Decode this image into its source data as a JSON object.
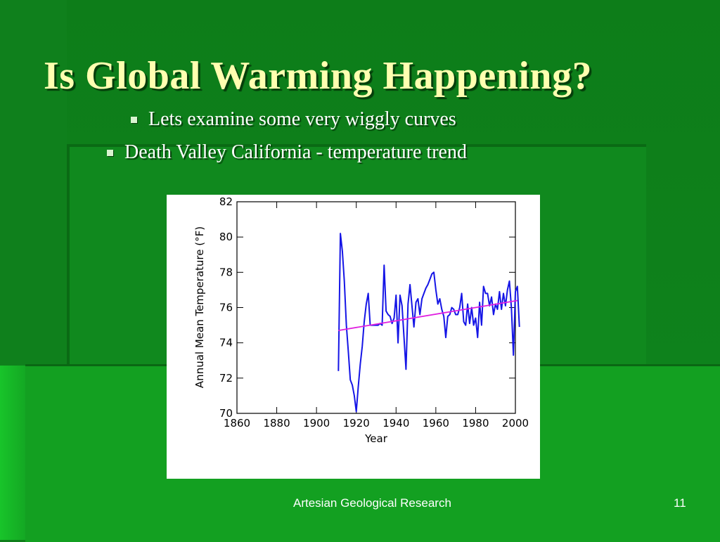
{
  "slide": {
    "title": "Is Global Warming  Happening?",
    "bullets": [
      "Lets examine some very wiggly curves",
      "Death Valley California  - temperature trend"
    ],
    "footer": "Artesian Geological Research",
    "page_number": "11"
  },
  "colors": {
    "title": "#ffffb0",
    "data_line": "#1515e6",
    "trend_line": "#e020e0"
  },
  "chart_data": {
    "type": "line",
    "title": "",
    "xlabel": "Year",
    "ylabel": "Annual Mean Temperature (°F)",
    "xlim": [
      1860,
      2000
    ],
    "ylim": [
      70,
      82
    ],
    "x_ticks": [
      1860,
      1880,
      1900,
      1920,
      1940,
      1960,
      1980,
      2000
    ],
    "y_ticks": [
      70,
      72,
      74,
      76,
      78,
      80,
      82
    ],
    "series": [
      {
        "values": [
          [
            1911,
            72.4
          ],
          [
            1912,
            80.2
          ],
          [
            1913,
            79.2
          ],
          [
            1914,
            77.5
          ],
          [
            1915,
            75.0
          ],
          [
            1916,
            73.5
          ],
          [
            1917,
            71.9
          ],
          [
            1918,
            71.6
          ],
          [
            1919,
            71.0
          ],
          [
            1920,
            70.1
          ],
          [
            1921,
            71.5
          ],
          [
            1922,
            72.8
          ],
          [
            1923,
            73.8
          ],
          [
            1924,
            75.2
          ],
          [
            1925,
            76.2
          ],
          [
            1926,
            76.8
          ],
          [
            1927,
            75.0
          ],
          [
            1928,
            75.0
          ],
          [
            1929,
            75.0
          ],
          [
            1930,
            75.0
          ],
          [
            1931,
            75.0
          ],
          [
            1932,
            75.1
          ],
          [
            1933,
            75.0
          ],
          [
            1934,
            78.4
          ],
          [
            1935,
            75.8
          ],
          [
            1936,
            75.6
          ],
          [
            1937,
            75.5
          ],
          [
            1938,
            75.1
          ],
          [
            1939,
            75.4
          ],
          [
            1940,
            76.7
          ],
          [
            1941,
            74.0
          ],
          [
            1942,
            76.7
          ],
          [
            1943,
            76.1
          ],
          [
            1944,
            74.3
          ],
          [
            1945,
            72.5
          ],
          [
            1946,
            76.2
          ],
          [
            1947,
            77.3
          ],
          [
            1948,
            76.1
          ],
          [
            1949,
            74.9
          ],
          [
            1950,
            76.3
          ],
          [
            1951,
            76.5
          ],
          [
            1952,
            75.6
          ],
          [
            1953,
            76.5
          ],
          [
            1954,
            76.8
          ],
          [
            1955,
            77.1
          ],
          [
            1956,
            77.3
          ],
          [
            1957,
            77.6
          ],
          [
            1958,
            77.9
          ],
          [
            1959,
            78.0
          ],
          [
            1960,
            77.0
          ],
          [
            1961,
            76.2
          ],
          [
            1962,
            76.5
          ],
          [
            1963,
            75.9
          ],
          [
            1964,
            75.5
          ],
          [
            1965,
            74.3
          ],
          [
            1966,
            75.5
          ],
          [
            1967,
            75.6
          ],
          [
            1968,
            76.0
          ],
          [
            1969,
            75.9
          ],
          [
            1970,
            75.6
          ],
          [
            1971,
            75.6
          ],
          [
            1972,
            76.0
          ],
          [
            1973,
            76.8
          ],
          [
            1974,
            75.2
          ],
          [
            1975,
            75.0
          ],
          [
            1976,
            76.2
          ],
          [
            1977,
            75.1
          ],
          [
            1978,
            76.0
          ],
          [
            1979,
            75.0
          ],
          [
            1980,
            75.4
          ],
          [
            1981,
            74.3
          ],
          [
            1982,
            76.3
          ],
          [
            1983,
            75.0
          ],
          [
            1984,
            77.2
          ],
          [
            1985,
            76.8
          ],
          [
            1986,
            76.8
          ],
          [
            1987,
            76.1
          ],
          [
            1988,
            76.6
          ],
          [
            1989,
            75.6
          ],
          [
            1990,
            76.2
          ],
          [
            1991,
            75.9
          ],
          [
            1992,
            76.9
          ],
          [
            1993,
            75.9
          ],
          [
            1994,
            76.8
          ],
          [
            1995,
            76.1
          ],
          [
            1996,
            77.0
          ],
          [
            1997,
            77.5
          ],
          [
            1998,
            76.0
          ],
          [
            1999,
            73.3
          ],
          [
            2000,
            76.9
          ],
          [
            2001,
            77.2
          ],
          [
            2002,
            74.9
          ]
        ]
      },
      {
        "values": [
          [
            1911,
            74.7
          ],
          [
            2001,
            76.4
          ]
        ]
      }
    ],
    "grid": false,
    "legend": "none"
  }
}
